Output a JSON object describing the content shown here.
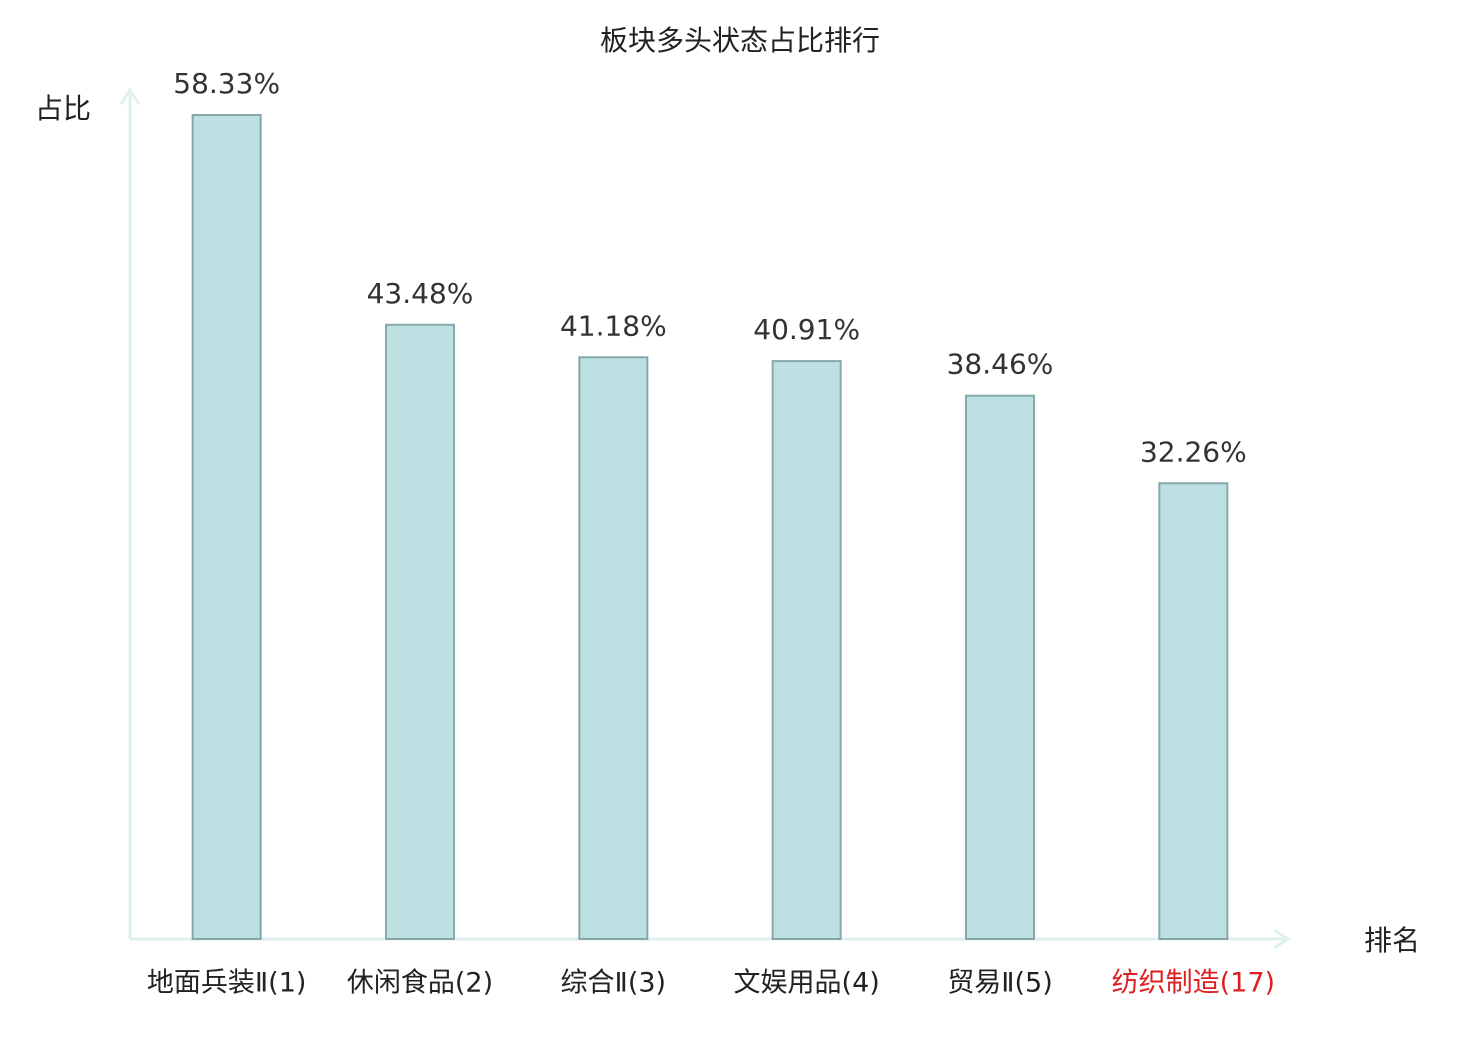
{
  "chart_data": {
    "type": "bar",
    "title": "板块多头状态占比排行",
    "y_label": "占比",
    "x_label": "排名",
    "categories": [
      "地面兵装Ⅱ(1)",
      "休闲食品(2)",
      "综合Ⅱ(3)",
      "文娱用品(4)",
      "贸易Ⅱ(5)",
      "纺织制造(17)"
    ],
    "category_label_colors": [
      "#222222",
      "#222222",
      "#222222",
      "#222222",
      "#222222",
      "#dd1f1f"
    ],
    "values": [
      58.33,
      43.48,
      41.18,
      40.91,
      38.46,
      32.26
    ],
    "value_labels": [
      "58.33%",
      "43.48%",
      "41.18%",
      "40.91%",
      "38.46%",
      "32.26%"
    ],
    "color": "#bde0e3",
    "edge_color": "#86a8aa",
    "ylim": [
      0,
      60
    ]
  }
}
